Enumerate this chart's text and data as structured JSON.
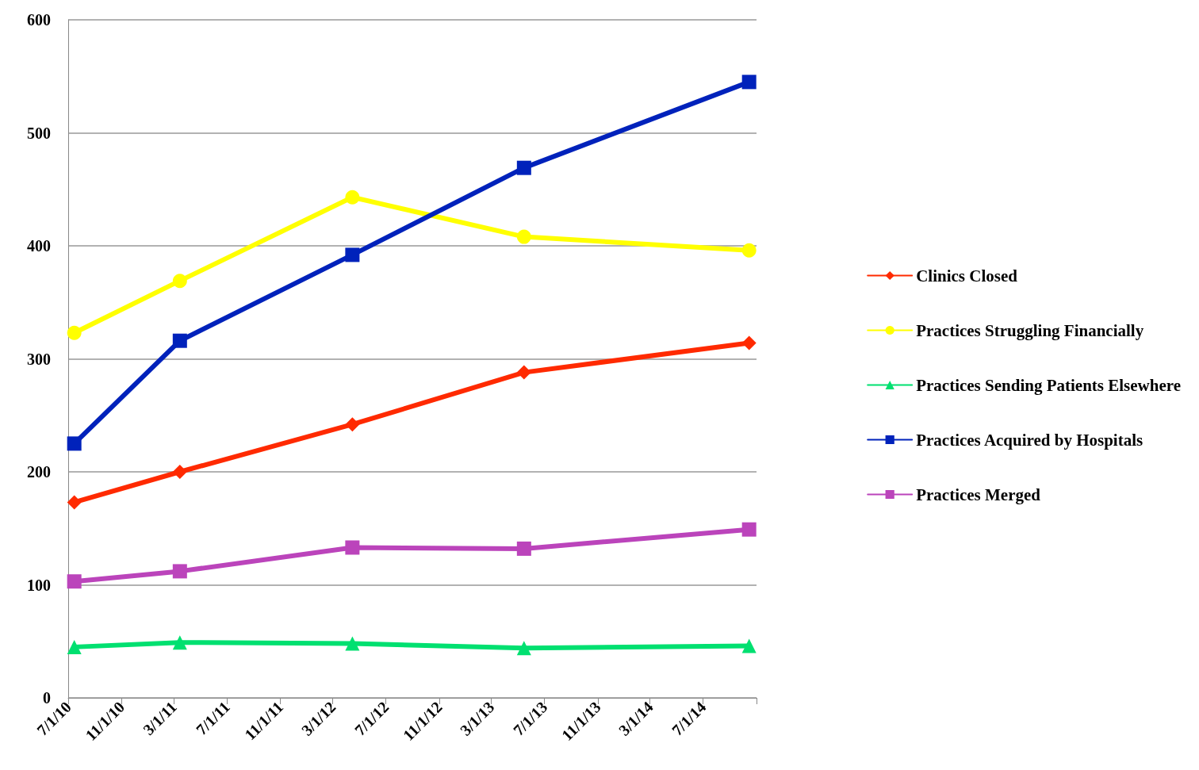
{
  "chart_data": {
    "type": "line",
    "x": [
      "2010-07-15",
      "2011-03-15",
      "2012-04-15",
      "2013-05-15",
      "2014-10-15"
    ],
    "series": [
      {
        "name": "Clinics Closed",
        "color": "#ff2a00",
        "marker": "diamond",
        "values": [
          173,
          200,
          242,
          288,
          314
        ]
      },
      {
        "name": "Practices Struggling Financially",
        "color": "#ffff00",
        "marker": "circle",
        "values": [
          323,
          369,
          443,
          408,
          396
        ]
      },
      {
        "name": "Practices Sending Patients Elsewhere",
        "color": "#00e070",
        "marker": "triangle",
        "values": [
          45,
          49,
          48,
          44,
          46
        ]
      },
      {
        "name": "Practices Acquired by Hospitals",
        "color": "#0022bb",
        "marker": "square",
        "values": [
          225,
          316,
          392,
          469,
          545
        ]
      },
      {
        "name": "Practices Merged",
        "color": "#bb44bb",
        "marker": "square",
        "values": [
          103,
          112,
          133,
          132,
          149
        ]
      }
    ],
    "xlim": [
      "2010-07-01",
      "2014-11-01"
    ],
    "xticks": [
      {
        "value": "2010-07-01",
        "label": "7/1/10"
      },
      {
        "value": "2010-11-01",
        "label": "11/1/10"
      },
      {
        "value": "2011-03-01",
        "label": "3/1/11"
      },
      {
        "value": "2011-07-01",
        "label": "7/1/11"
      },
      {
        "value": "2011-11-01",
        "label": "11/1/11"
      },
      {
        "value": "2012-03-01",
        "label": "3/1/12"
      },
      {
        "value": "2012-07-01",
        "label": "7/1/12"
      },
      {
        "value": "2012-11-01",
        "label": "11/1/12"
      },
      {
        "value": "2013-03-01",
        "label": "3/1/13"
      },
      {
        "value": "2013-07-01",
        "label": "7/1/13"
      },
      {
        "value": "2013-11-01",
        "label": "11/1/13"
      },
      {
        "value": "2014-03-01",
        "label": "3/1/14"
      },
      {
        "value": "2014-07-01",
        "label": "7/1/14"
      },
      {
        "value": "2014-11-01",
        "label": null
      }
    ],
    "ylim": [
      0,
      600
    ],
    "yticks": [
      0,
      100,
      200,
      300,
      400,
      500,
      600
    ],
    "grid": "y",
    "legend": "right",
    "line_style": "solid"
  }
}
